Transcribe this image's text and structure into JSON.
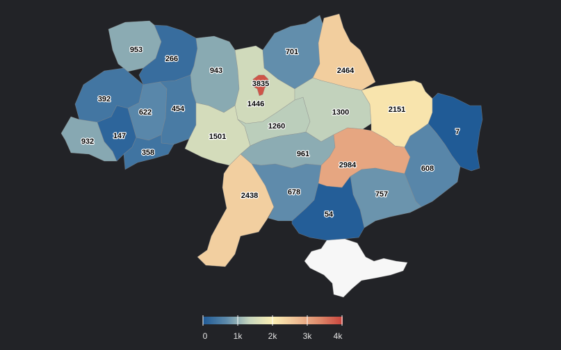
{
  "legend": {
    "ticks": [
      "0",
      "1k",
      "2k",
      "3k",
      "4k"
    ],
    "min": 0,
    "max": 4000
  },
  "colors": {
    "background": "#222327",
    "scale": [
      "#1f5a96",
      "#5d8aab",
      "#c7d6bd",
      "#fbefb4",
      "#eebf95",
      "#de8a6b",
      "#c9433c"
    ],
    "no_data": "#f7f7f7"
  },
  "regions": [
    {
      "id": "volyn",
      "value": 953
    },
    {
      "id": "rivne",
      "value": 266
    },
    {
      "id": "zhytomyr",
      "value": 943
    },
    {
      "id": "kyiv-oblast",
      "value": 1446
    },
    {
      "id": "kyiv-city",
      "value": 3835
    },
    {
      "id": "chernihiv",
      "value": 701
    },
    {
      "id": "sumy",
      "value": 2464
    },
    {
      "id": "lviv",
      "value": 392
    },
    {
      "id": "ternopil",
      "value": 622
    },
    {
      "id": "khmelnytskyi",
      "value": 454
    },
    {
      "id": "zakarpattia",
      "value": 932
    },
    {
      "id": "ivano-frankivsk",
      "value": 147
    },
    {
      "id": "chernivtsi",
      "value": 358
    },
    {
      "id": "vinnytsia",
      "value": 1501
    },
    {
      "id": "cherkasy",
      "value": 1260
    },
    {
      "id": "poltava",
      "value": 1300
    },
    {
      "id": "kharkiv",
      "value": 2151
    },
    {
      "id": "luhansk",
      "value": 7
    },
    {
      "id": "kirovohrad",
      "value": 961
    },
    {
      "id": "dnipropetrovsk",
      "value": 2984
    },
    {
      "id": "donetsk",
      "value": 608
    },
    {
      "id": "odesa",
      "value": 2438
    },
    {
      "id": "mykolaiv",
      "value": 678
    },
    {
      "id": "zaporizhzhia",
      "value": 757
    },
    {
      "id": "kherson",
      "value": 54
    },
    {
      "id": "crimea",
      "value": null
    }
  ]
}
